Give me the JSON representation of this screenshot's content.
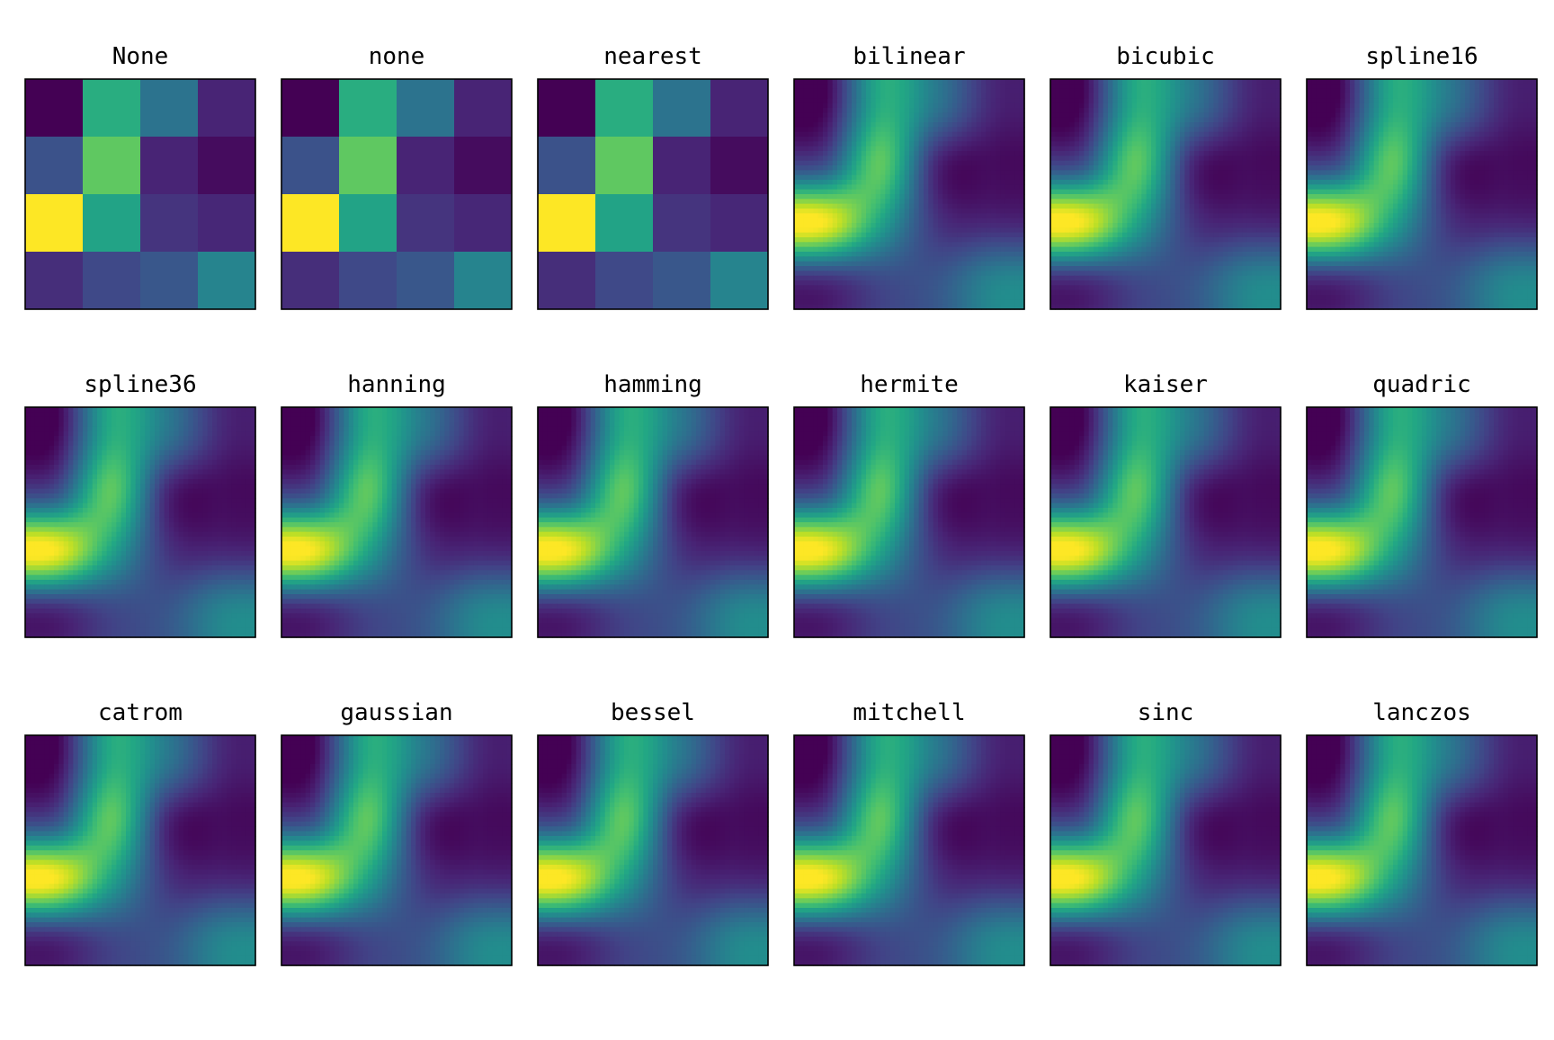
{
  "chart_data": {
    "type": "heatmap",
    "layout": {
      "rows": 3,
      "cols": 6
    },
    "colormap": "viridis",
    "value_range": [
      0,
      1
    ],
    "grid": false,
    "axes_ticks": false,
    "matrix": [
      [
        0.0,
        0.62,
        0.38,
        0.1
      ],
      [
        0.25,
        0.75,
        0.1,
        0.03
      ],
      [
        1.0,
        0.58,
        0.15,
        0.11
      ],
      [
        0.13,
        0.22,
        0.27,
        0.45
      ]
    ],
    "panels": [
      {
        "title": "None",
        "method": "nearest"
      },
      {
        "title": "none",
        "method": "nearest"
      },
      {
        "title": "nearest",
        "method": "nearest"
      },
      {
        "title": "bilinear",
        "method": "smooth"
      },
      {
        "title": "bicubic",
        "method": "smooth"
      },
      {
        "title": "spline16",
        "method": "smooth"
      },
      {
        "title": "spline36",
        "method": "smooth"
      },
      {
        "title": "hanning",
        "method": "smooth"
      },
      {
        "title": "hamming",
        "method": "smooth"
      },
      {
        "title": "hermite",
        "method": "smooth"
      },
      {
        "title": "kaiser",
        "method": "smooth"
      },
      {
        "title": "quadric",
        "method": "smooth"
      },
      {
        "title": "catrom",
        "method": "smooth"
      },
      {
        "title": "gaussian",
        "method": "smooth"
      },
      {
        "title": "bessel",
        "method": "smooth"
      },
      {
        "title": "mitchell",
        "method": "smooth"
      },
      {
        "title": "sinc",
        "method": "smooth"
      },
      {
        "title": "lanczos",
        "method": "smooth"
      }
    ]
  }
}
